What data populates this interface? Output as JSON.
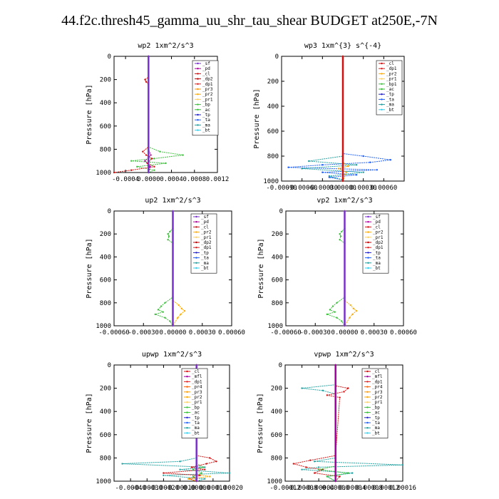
{
  "title": "44.f2c.thresh45_gamma_uu_shr_tau_shear  BUDGET at250E,-7N",
  "colors": {
    "sf": "#7a2fd0",
    "pd": "#b000a0",
    "cl": "#d01010",
    "dp2": "#c00000",
    "dp1": "#e02020",
    "pr3": "#ff9900",
    "pr2": "#ffaa00",
    "pr1": "#ffd060",
    "bp": "#40c040",
    "bp1": "#40c040",
    "ac": "#30c030",
    "tp": "#2020d0",
    "ta": "#2060ff",
    "ma": "#20a0a0",
    "bt": "#30d0f0",
    "mfl": "#a000a0",
    "pr4": "#ff6000"
  },
  "chart_data": [
    {
      "type": "line",
      "title": "wp2  1xm^2/s^3",
      "ylabel": "Pressure [hPa]",
      "xlim": [
        -0.0006,
        0.0012
      ],
      "xticks": [
        "-0.0004",
        "0.0000",
        "0.0004",
        "0.0008",
        "0.0012"
      ],
      "xtick_values": [
        -0.0004,
        0,
        0.0004,
        0.0008,
        0.0012
      ],
      "ylim": [
        1000,
        0
      ],
      "yticks": [
        "0",
        "200",
        "400",
        "600",
        "800",
        "1000"
      ],
      "legend": [
        "_sf",
        "_pd",
        "_cl",
        "_dp2",
        "_dp1",
        "_pr3",
        "_pr2",
        "_pr1",
        "_bp",
        "_ac",
        "_tp",
        "_ta",
        "_ma",
        "_bt"
      ],
      "legend_keys": [
        "sf",
        "pd",
        "cl",
        "dp2",
        "dp1",
        "pr3",
        "pr2",
        "pr1",
        "bp",
        "ac",
        "tp",
        "ta",
        "ma",
        "bt"
      ],
      "series": [
        {
          "key": "bp",
          "p": [
            0,
            780,
            820,
            850,
            880,
            900,
            920,
            950,
            980,
            1000
          ],
          "x": [
            0,
            0,
            0.0002,
            0.0006,
            0.0001,
            -0.0003,
            0.0003,
            -0.0002,
            0.0001,
            0
          ]
        },
        {
          "key": "cl",
          "p": [
            0,
            180,
            200,
            220,
            240,
            780,
            820,
            850,
            880,
            920,
            950,
            980,
            1000
          ],
          "x": [
            0,
            0,
            -6e-05,
            -4e-05,
            0,
            0,
            -0.0001,
            -4e-05,
            6e-05,
            -2e-05,
            0.0001,
            -0.0003,
            -0.0006
          ]
        },
        {
          "key": "pd",
          "p": [
            0,
            800,
            850,
            900,
            950,
            1000
          ],
          "x": [
            0,
            0,
            4e-05,
            -6e-05,
            3e-05,
            0
          ]
        },
        {
          "key": "sf",
          "p": [
            0,
            1000
          ],
          "x": [
            0,
            0
          ]
        }
      ]
    },
    {
      "type": "line",
      "title": "wp3  1xm^{3} s^{-4}",
      "ylabel": "Pressure [hPa]",
      "xlim": [
        -0.0009,
        0.0009
      ],
      "xticks": [
        "-0.00090",
        "-0.00060",
        "-0.00030",
        "0.00000",
        "0.00030",
        "0.00060"
      ],
      "xtick_values": [
        -0.0009,
        -0.0006,
        -0.0003,
        0,
        0.0003,
        0.0006
      ],
      "ylim": [
        1000,
        0
      ],
      "yticks": [
        "0",
        "200",
        "400",
        "600",
        "800",
        "1000"
      ],
      "legend": [
        "_cl",
        "_dp1",
        "_pr2",
        "_pr1",
        "_bp1",
        "_ac",
        "_tp",
        "_ta",
        "_ma",
        "_bt"
      ],
      "legend_keys": [
        "cl",
        "dp1",
        "pr2",
        "pr1",
        "bp1",
        "ac",
        "tp",
        "ta",
        "ma",
        "bt"
      ],
      "series": [
        {
          "key": "ta",
          "p": [
            0,
            780,
            800,
            830,
            850,
            870,
            890,
            910,
            930,
            950,
            970,
            990
          ],
          "x": [
            0,
            0,
            0.0003,
            0.0007,
            0.0004,
            -0.0003,
            -0.0008,
            0.0005,
            -0.0003,
            0.0002,
            -0.0002,
            0
          ]
        },
        {
          "key": "ma",
          "p": [
            0,
            800,
            840,
            870,
            900,
            930,
            960,
            990
          ],
          "x": [
            0,
            0,
            -0.0005,
            0.0002,
            -0.0006,
            0.0003,
            -0.0002,
            0
          ]
        },
        {
          "key": "pr2",
          "p": [
            0,
            850,
            880,
            900,
            930,
            1000
          ],
          "x": [
            0,
            0,
            8e-05,
            -6e-05,
            5e-05,
            0
          ]
        },
        {
          "key": "cl",
          "p": [
            0,
            1000
          ],
          "x": [
            0,
            0
          ]
        }
      ]
    },
    {
      "type": "line",
      "title": "up2  1xm^2/s^3",
      "ylabel": "Pressure [hPa]",
      "xlim": [
        -0.0006,
        0.0006
      ],
      "xticks": [
        "-0.00060",
        "-0.00030",
        "0.00000",
        "0.00030",
        "0.00060"
      ],
      "xtick_values": [
        -0.0006,
        -0.0003,
        0,
        0.0003,
        0.0006
      ],
      "ylim": [
        1000,
        0
      ],
      "yticks": [
        "0",
        "200",
        "400",
        "600",
        "800",
        "1000"
      ],
      "legend": [
        "_sf",
        "_pd",
        "_cl",
        "_pr2",
        "_pr1",
        "_dp2",
        "_dp1",
        "_tp",
        "_ta",
        "_ma",
        "_bt"
      ],
      "legend_keys": [
        "sf",
        "pd",
        "cl",
        "pr2",
        "pr1",
        "dp2",
        "dp1",
        "tp",
        "ta",
        "ma",
        "bt"
      ],
      "series": [
        {
          "key": "bp",
          "p": [
            0,
            150,
            180,
            200,
            220,
            250,
            280,
            750,
            800,
            830,
            860,
            880,
            900,
            930,
            960,
            1000
          ],
          "x": [
            0,
            0,
            -3e-05,
            -5e-05,
            -4e-05,
            -5e-05,
            0,
            0,
            -8e-05,
            -0.00012,
            -0.00015,
            -0.0001,
            -0.00018,
            -8e-05,
            -3e-05,
            0
          ]
        },
        {
          "key": "pr2",
          "p": [
            0,
            780,
            820,
            850,
            870,
            900,
            930,
            1000
          ],
          "x": [
            0,
            0,
            6e-05,
            9e-05,
            0.00012,
            8e-05,
            5e-05,
            0
          ]
        },
        {
          "key": "sf",
          "p": [
            0,
            1000
          ],
          "x": [
            0,
            0
          ]
        }
      ]
    },
    {
      "type": "line",
      "title": "vp2  1xm^2/s^3",
      "ylabel": "Pressure [hPa]",
      "xlim": [
        -0.0006,
        0.0006
      ],
      "xticks": [
        "-0.00060",
        "-0.00030",
        "0.00000",
        "0.00030",
        "0.00060"
      ],
      "xtick_values": [
        -0.0006,
        -0.0003,
        0,
        0.0003,
        0.0006
      ],
      "ylim": [
        1000,
        0
      ],
      "yticks": [
        "0",
        "200",
        "400",
        "600",
        "800",
        "1000"
      ],
      "legend": [
        "_sf",
        "_pd",
        "_cl",
        "_pr2",
        "_pr1",
        "_dp2",
        "_dp1",
        "_tp",
        "_ta",
        "_ma",
        "_bt"
      ],
      "legend_keys": [
        "sf",
        "pd",
        "cl",
        "pr2",
        "pr1",
        "dp2",
        "dp1",
        "tp",
        "ta",
        "ma",
        "bt"
      ],
      "series": [
        {
          "key": "bp",
          "p": [
            0,
            150,
            180,
            200,
            220,
            250,
            280,
            750,
            800,
            830,
            860,
            880,
            900,
            930,
            960,
            1000
          ],
          "x": [
            0,
            0,
            -3e-05,
            -5e-05,
            -4e-05,
            -5e-05,
            0,
            0,
            -8e-05,
            -0.00012,
            -0.00015,
            -0.0001,
            -0.00018,
            -8e-05,
            -3e-05,
            0
          ]
        },
        {
          "key": "pr2",
          "p": [
            0,
            780,
            820,
            850,
            870,
            900,
            930,
            1000
          ],
          "x": [
            0,
            0,
            6e-05,
            9e-05,
            0.00012,
            8e-05,
            5e-05,
            0
          ]
        },
        {
          "key": "sf",
          "p": [
            0,
            1000
          ],
          "x": [
            0,
            0
          ]
        }
      ]
    },
    {
      "type": "line",
      "title": "upwp  1xm^2/s^3",
      "ylabel": "Pressure [hPa]",
      "xlim": [
        -0.0005,
        0.0002
      ],
      "xticks": [
        "-0.00040",
        "-0.00030",
        "-0.00020",
        "-0.00010",
        "0.00000",
        "0.00010",
        "0.00020"
      ],
      "xtick_values": [
        -0.0004,
        -0.0003,
        -0.0002,
        -0.0001,
        0,
        0.0001,
        0.0002
      ],
      "ylim": [
        1000,
        0
      ],
      "yticks": [
        "0",
        "200",
        "400",
        "600",
        "800",
        "1000"
      ],
      "legend": [
        "_cl",
        "_mfl",
        "_dp1",
        "_pr4",
        "_pr3",
        "_pr2",
        "_pr1",
        "_bp",
        "_ac",
        "_tp",
        "_ta",
        "_ma",
        "_bt"
      ],
      "legend_keys": [
        "cl",
        "mfl",
        "dp1",
        "pr4",
        "pr3",
        "pr2",
        "pr1",
        "bp",
        "ac",
        "tp",
        "ta",
        "ma",
        "bt"
      ],
      "series": [
        {
          "key": "ma",
          "p": [
            0,
            170,
            200,
            230,
            800,
            830,
            850,
            880,
            900,
            930,
            950,
            980,
            1000
          ],
          "x": [
            0,
            0,
            -4e-05,
            0,
            0,
            -0.0001,
            -0.00045,
            5e-05,
            -0.0001,
            0.0002,
            -0.0002,
            5e-05,
            0
          ]
        },
        {
          "key": "cl",
          "p": [
            0,
            780,
            800,
            830,
            850,
            880,
            900,
            930,
            950,
            980,
            1000
          ],
          "x": [
            0,
            0,
            8e-05,
            0.00012,
            6e-05,
            -3e-05,
            5e-05,
            -0.0002,
            2e-05,
            -4e-05,
            0
          ]
        },
        {
          "key": "bp",
          "p": [
            0,
            850,
            880,
            900,
            930,
            960,
            1000
          ],
          "x": [
            0,
            0,
            4e-05,
            -2e-05,
            3e-05,
            -2e-05,
            0
          ]
        },
        {
          "key": "pr2",
          "p": [
            0,
            940,
            960,
            980,
            1000
          ],
          "x": [
            0,
            0,
            8e-05,
            -5e-05,
            0
          ]
        },
        {
          "key": "sf",
          "p": [
            0,
            1000
          ],
          "x": [
            0,
            0
          ]
        }
      ]
    },
    {
      "type": "line",
      "title": "vpwp  1xm^2/s^3",
      "ylabel": "Pressure [hPa]",
      "xlim": [
        -0.00012,
        0.00016
      ],
      "xticks": [
        "-0.00012",
        "-0.00008",
        "-0.00004",
        "0.00000",
        "0.00004",
        "0.00008",
        "0.00012",
        "0.00016"
      ],
      "xtick_values": [
        -0.00012,
        -8e-05,
        -4e-05,
        0,
        4e-05,
        8e-05,
        0.00012,
        0.00016
      ],
      "ylim": [
        1000,
        0
      ],
      "yticks": [
        "0",
        "200",
        "400",
        "600",
        "800",
        "1000"
      ],
      "legend": [
        "_cl",
        "_mfl",
        "_dp1",
        "_pr4",
        "_pr3",
        "_pr2",
        "_pr1",
        "_bp",
        "_ac",
        "_tp",
        "_ta",
        "_ma",
        "_bt"
      ],
      "legend_keys": [
        "cl",
        "mfl",
        "dp1",
        "pr4",
        "pr3",
        "pr2",
        "pr1",
        "bp",
        "ac",
        "tp",
        "ta",
        "ma",
        "bt"
      ],
      "series": [
        {
          "key": "ma",
          "p": [
            0,
            170,
            200,
            220,
            250,
            800,
            830,
            860,
            880,
            900,
            930,
            960,
            1000
          ],
          "x": [
            0,
            0,
            -8e-05,
            -3e-05,
            0,
            0,
            -5e-05,
            0.00016,
            -4e-05,
            -8e-05,
            4e-05,
            -2e-05,
            0
          ]
        },
        {
          "key": "cl",
          "p": [
            0,
            180,
            200,
            230,
            260,
            280,
            780,
            820,
            850,
            880,
            900,
            930,
            960,
            1000
          ],
          "x": [
            0,
            0,
            3e-05,
            2e-05,
            -2e-05,
            1e-05,
            0,
            -6e-05,
            -0.0001,
            -7e-05,
            -3e-05,
            -5e-05,
            1e-05,
            0
          ]
        },
        {
          "key": "bp",
          "p": [
            0,
            870,
            900,
            930,
            960,
            1000
          ],
          "x": [
            0,
            0,
            -4e-05,
            3e-05,
            -2e-05,
            0
          ]
        },
        {
          "key": "mfl",
          "p": [
            0,
            1000
          ],
          "x": [
            0,
            0
          ]
        }
      ]
    }
  ]
}
